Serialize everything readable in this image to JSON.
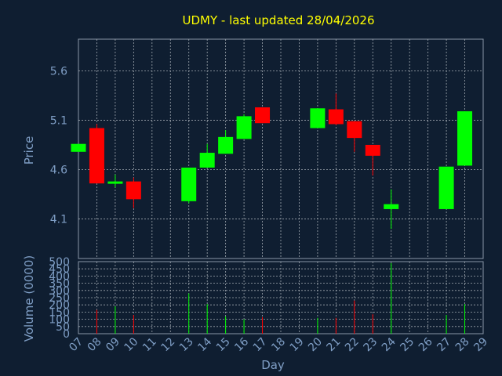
{
  "chart_data": {
    "type": "candlestick",
    "title": "UDMY - last updated 28/04/2026",
    "xlabel": "Day",
    "ylabel": "Price",
    "volume_label": "Volume (0000)",
    "price_ticks": [
      "5.6",
      "5.1",
      "4.6",
      "4.1"
    ],
    "price_tick_values": [
      5.6,
      5.1,
      4.6,
      4.1
    ],
    "price_range": [
      3.7,
      5.92
    ],
    "volume_ticks": [
      "500",
      "450",
      "400",
      "350",
      "300",
      "250",
      "200",
      "150",
      "100",
      "50",
      "0"
    ],
    "volume_tick_values": [
      500,
      450,
      400,
      350,
      300,
      250,
      200,
      150,
      100,
      50,
      0
    ],
    "volume_range": [
      0,
      500
    ],
    "day_labels": [
      "07",
      "08",
      "09",
      "10",
      "11",
      "12",
      "13",
      "14",
      "15",
      "16",
      "17",
      "18",
      "19",
      "20",
      "21",
      "22",
      "23",
      "24",
      "25",
      "26",
      "27",
      "28",
      "29"
    ],
    "candles": [
      {
        "day": "07",
        "open": 4.78,
        "high": 4.86,
        "low": 4.78,
        "close": 4.86,
        "volume": 0
      },
      {
        "day": "08",
        "open": 5.02,
        "high": 5.06,
        "low": 4.46,
        "close": 4.46,
        "volume": 165
      },
      {
        "day": "09",
        "open": 4.46,
        "high": 4.55,
        "low": 4.42,
        "close": 4.48,
        "volume": 190
      },
      {
        "day": "10",
        "open": 4.48,
        "high": 4.52,
        "low": 4.21,
        "close": 4.3,
        "volume": 130
      },
      {
        "day": "13",
        "open": 4.28,
        "high": 4.62,
        "low": 4.26,
        "close": 4.62,
        "volume": 280
      },
      {
        "day": "14",
        "open": 4.62,
        "high": 4.86,
        "low": 4.62,
        "close": 4.77,
        "volume": 205
      },
      {
        "day": "15",
        "open": 4.76,
        "high": 5.0,
        "low": 4.76,
        "close": 4.93,
        "volume": 120
      },
      {
        "day": "16",
        "open": 4.91,
        "high": 5.16,
        "low": 4.91,
        "close": 5.14,
        "volume": 100
      },
      {
        "day": "17",
        "open": 5.23,
        "high": 5.23,
        "low": 5.07,
        "close": 5.07,
        "volume": 115
      },
      {
        "day": "20",
        "open": 5.02,
        "high": 5.22,
        "low": 5.02,
        "close": 5.22,
        "volume": 110
      },
      {
        "day": "21",
        "open": 5.21,
        "high": 5.37,
        "low": 5.05,
        "close": 5.06,
        "volume": 110
      },
      {
        "day": "22",
        "open": 5.09,
        "high": 5.09,
        "low": 4.78,
        "close": 4.92,
        "volume": 230
      },
      {
        "day": "23",
        "open": 4.85,
        "high": 4.85,
        "low": 4.54,
        "close": 4.74,
        "volume": 135
      },
      {
        "day": "24",
        "open": 4.2,
        "high": 4.4,
        "low": 4.0,
        "close": 4.25,
        "volume": 490
      },
      {
        "day": "27",
        "open": 4.2,
        "high": 4.63,
        "low": 4.2,
        "close": 4.63,
        "volume": 130
      },
      {
        "day": "28",
        "open": 4.64,
        "high": 5.19,
        "low": 4.64,
        "close": 5.19,
        "volume": 205
      }
    ],
    "colors": {
      "background": "#0f1e31",
      "up": "#00ff00",
      "down": "#ff0000",
      "title": "#ffff00",
      "axis": "#7f9ec5",
      "grid": "#a0a8b0"
    },
    "grid": true
  }
}
